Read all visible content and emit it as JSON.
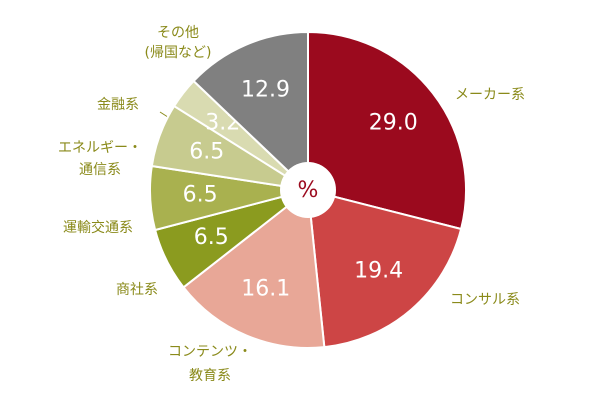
{
  "chart_data": {
    "type": "donut",
    "center_label": "%",
    "categories": [
      [
        "メーカー系"
      ],
      [
        "コンサル系"
      ],
      [
        "コンテンツ・",
        "教育系"
      ],
      [
        "商社系"
      ],
      [
        "運輸交通系"
      ],
      [
        "エネルギー・",
        "通信系"
      ],
      [
        "金融系"
      ],
      [
        "その他",
        "(帰国など)"
      ]
    ],
    "values": [
      29.0,
      19.4,
      16.1,
      6.5,
      6.5,
      6.5,
      3.2,
      12.9
    ],
    "value_labels": [
      "29.0",
      "19.4",
      "16.1",
      "6.5",
      "6.5",
      "6.5",
      "3.2",
      "12.9"
    ],
    "colors": [
      "#9b0a1e",
      "#cd4545",
      "#e8a797",
      "#8b9b1f",
      "#a9b14f",
      "#c7cb8f",
      "#d9dbb1",
      "#808080"
    ]
  }
}
